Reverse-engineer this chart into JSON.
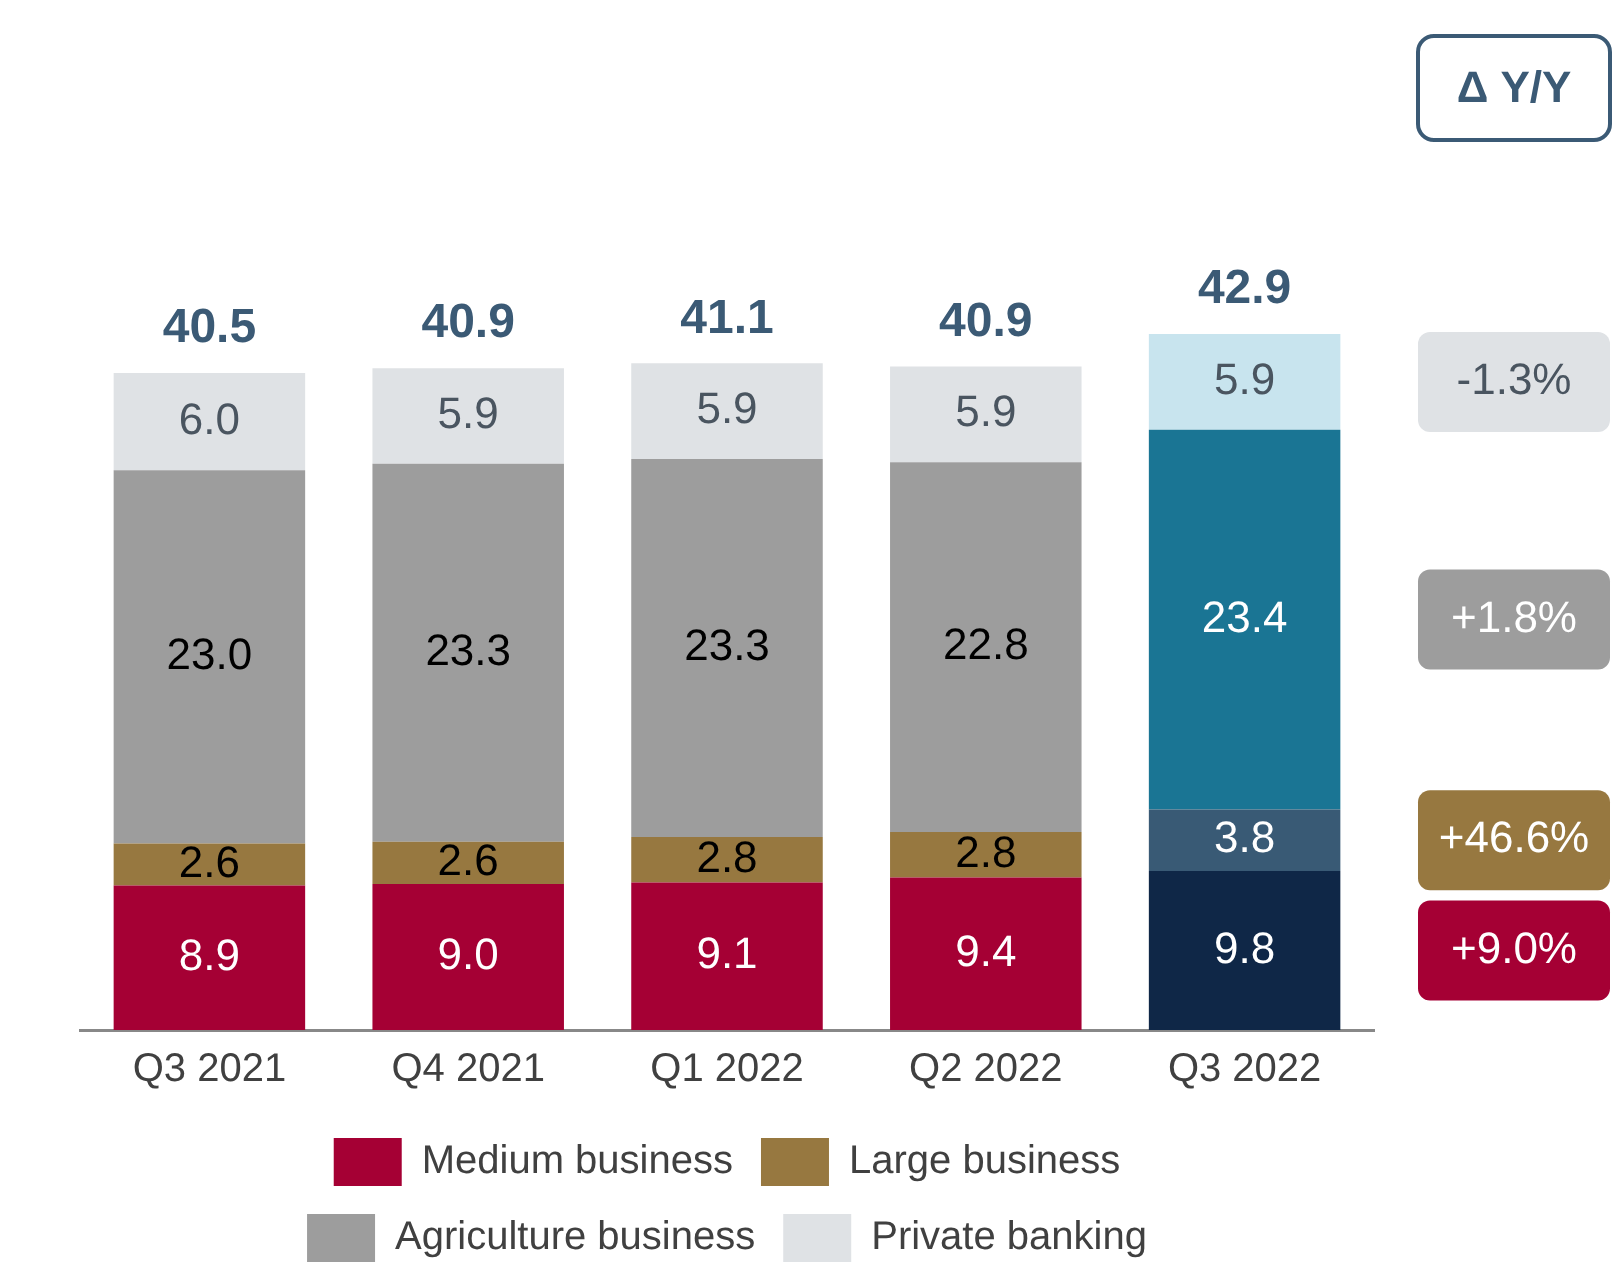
{
  "chart_data": {
    "type": "bar",
    "stacked": true,
    "categories": [
      "Q3 2021",
      "Q4 2021",
      "Q1 2022",
      "Q2 2022",
      "Q3 2022"
    ],
    "series": [
      {
        "name": "Medium business",
        "color": "#a50034",
        "colors": [
          "#a50034",
          "#a50034",
          "#a50034",
          "#a50034",
          "#0f2747"
        ],
        "values": [
          8.9,
          9.0,
          9.1,
          9.4,
          9.8
        ],
        "value_labels": [
          "8.9",
          "9.0",
          "9.1",
          "9.4",
          "9.8"
        ]
      },
      {
        "name": "Large business",
        "color": "#977840",
        "colors": [
          "#977840",
          "#977840",
          "#977840",
          "#977840",
          "#395a75"
        ],
        "values": [
          2.6,
          2.6,
          2.8,
          2.8,
          3.8
        ],
        "value_labels": [
          "2.6",
          "2.6",
          "2.8",
          "2.8",
          "3.8"
        ]
      },
      {
        "name": "Agriculture business",
        "color": "#9d9d9d",
        "colors": [
          "#9d9d9d",
          "#9d9d9d",
          "#9d9d9d",
          "#9d9d9d",
          "#1a7594"
        ],
        "values": [
          23.0,
          23.3,
          23.3,
          22.8,
          23.4
        ],
        "value_labels": [
          "23.0",
          "23.3",
          "23.3",
          "22.8",
          "23.4"
        ]
      },
      {
        "name": "Private banking",
        "color": "#dfe2e5",
        "colors": [
          "#dfe2e5",
          "#dfe2e5",
          "#dfe2e5",
          "#dfe2e5",
          "#c8e4ee"
        ],
        "values": [
          6.0,
          5.9,
          5.9,
          5.9,
          5.9
        ],
        "value_labels": [
          "6.0",
          "5.9",
          "5.9",
          "5.9",
          "5.9"
        ]
      }
    ],
    "totals": [
      "40.5",
      "40.9",
      "41.1",
      "40.9",
      "42.9"
    ],
    "annotations": [
      "Δ Y/Y",
      "-1.3%",
      "+1.8%",
      "+46.6%",
      "+9.0%"
    ],
    "legend": "bottom",
    "grid": false,
    "tick_labels": "x"
  }
}
